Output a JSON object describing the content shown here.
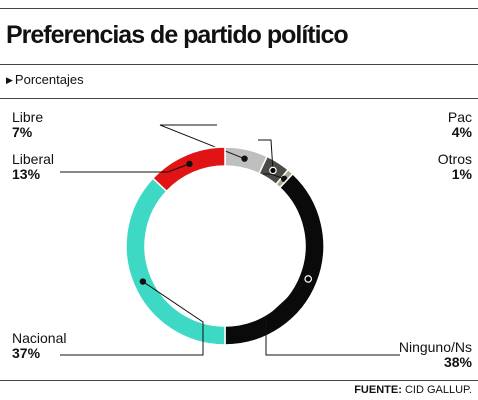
{
  "header": {
    "title": "Preferencias de partido político",
    "subtitle": "Porcentajes"
  },
  "chart_data": {
    "type": "pie",
    "donut": true,
    "title": "Preferencias de partido político",
    "subtitle": "Porcentajes",
    "slices": [
      {
        "label": "Libre",
        "value": 7,
        "display": "7%",
        "color": "#bfbfbf"
      },
      {
        "label": "Pac",
        "value": 4,
        "display": "4%",
        "color": "#4a4a46"
      },
      {
        "label": "Otros",
        "value": 1,
        "display": "1%",
        "color": "#a8a98f"
      },
      {
        "label": "Ninguno/Ns",
        "value": 38,
        "display": "38%",
        "color": "#0a0a0a"
      },
      {
        "label": "Nacional",
        "value": 37,
        "display": "37%",
        "color": "#3dd9c4"
      },
      {
        "label": "Liberal",
        "value": 13,
        "display": "13%",
        "color": "#e01414"
      }
    ],
    "legend": "none"
  },
  "footer": {
    "source_label": "FUENTE:",
    "source_value": "CID GALLUP."
  }
}
